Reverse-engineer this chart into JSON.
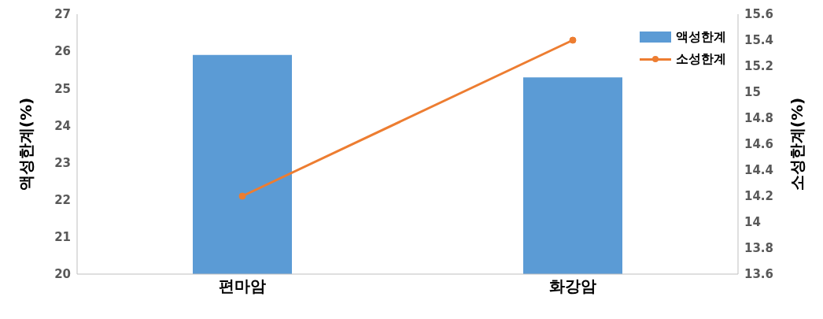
{
  "chart_data": {
    "type": "bar",
    "categories": [
      "편마암",
      "화강암"
    ],
    "series": [
      {
        "name": "액성한계",
        "color": "#5b9bd5",
        "values": [
          25.9,
          25.3
        ]
      },
      {
        "name": "소성한계",
        "type": "line",
        "axis": "y2",
        "color": "#ed7d31",
        "values": [
          14.2,
          15.4
        ]
      }
    ],
    "ylabel": "액성한계(%)",
    "y2label": "소성한계(%)",
    "ylim": [
      20,
      27
    ],
    "yticks": [
      20,
      21,
      22,
      23,
      24,
      25,
      26,
      27
    ],
    "y2lim": [
      13.6,
      15.6
    ],
    "y2ticks": [
      13.6,
      13.8,
      14,
      14.2,
      14.4,
      14.6,
      14.8,
      15,
      15.2,
      15.4,
      15.6
    ],
    "legend": "top right",
    "marker": "circle",
    "grid": false
  }
}
